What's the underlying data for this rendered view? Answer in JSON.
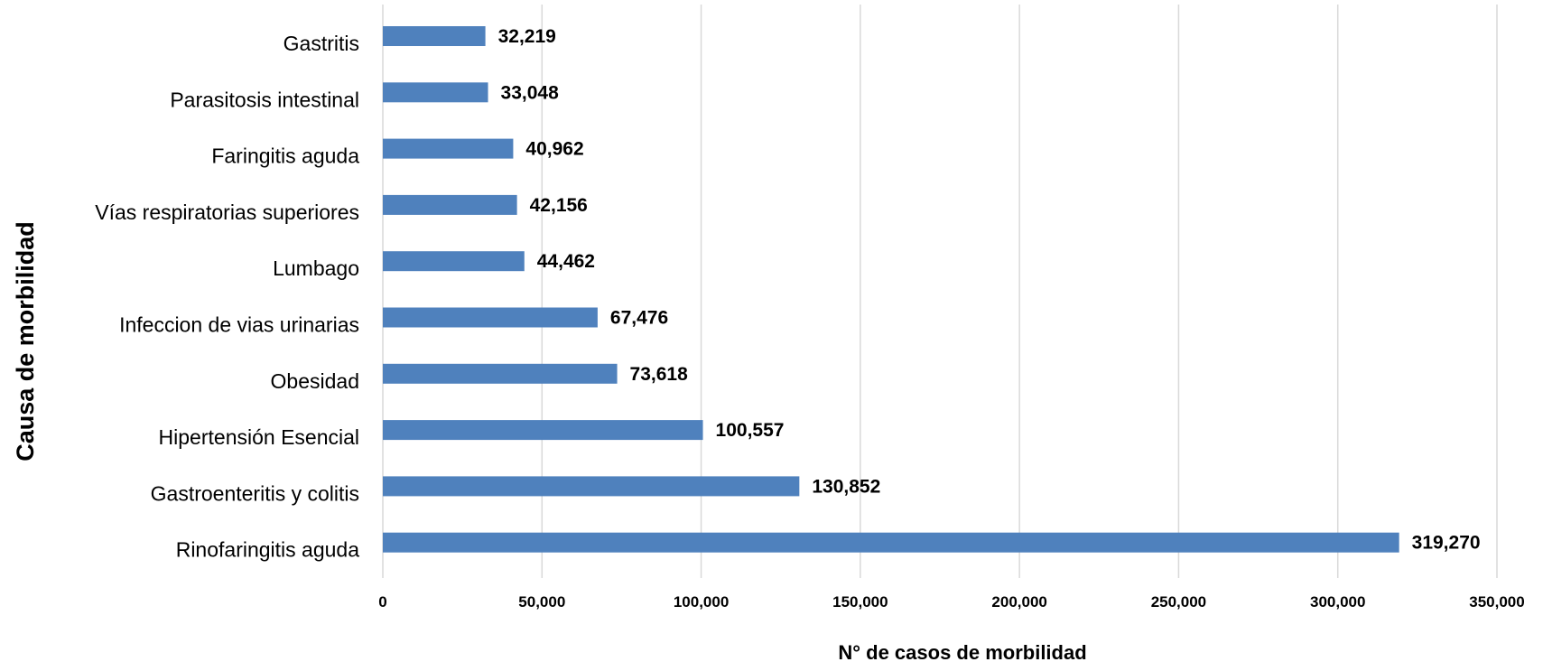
{
  "chart_data": {
    "type": "bar",
    "orientation": "horizontal",
    "title": "",
    "xlabel": "N° de casos de morbilidad",
    "ylabel": "Causa de morbilidad",
    "categories": [
      "Gastritis",
      "Parasitosis intestinal",
      "Faringitis aguda",
      "Vías respiratorias superiores",
      "Lumbago",
      "Infeccion de vias urinarias",
      "Obesidad",
      "Hipertensión Esencial",
      "Gastroenteritis y colitis",
      "Rinofaringitis aguda"
    ],
    "values": [
      32219,
      33048,
      40962,
      42156,
      44462,
      67476,
      73618,
      100557,
      130852,
      319270
    ],
    "value_labels": [
      "32,219",
      "33,048",
      "40,962",
      "42,156",
      "44,462",
      "67,476",
      "73,618",
      "100,557",
      "130,852",
      "319,270"
    ],
    "xlim": [
      0,
      350000
    ],
    "xticks": [
      0,
      50000,
      100000,
      150000,
      200000,
      250000,
      300000,
      350000
    ],
    "xtick_labels": [
      "0",
      "50,000",
      "100,000",
      "150,000",
      "200,000",
      "250,000",
      "300,000",
      "350,000"
    ],
    "grid": "vertical",
    "legend": "none",
    "colors": {
      "bar": "#4F81BD",
      "grid": "#D9D9D9",
      "text": "#000000"
    }
  }
}
